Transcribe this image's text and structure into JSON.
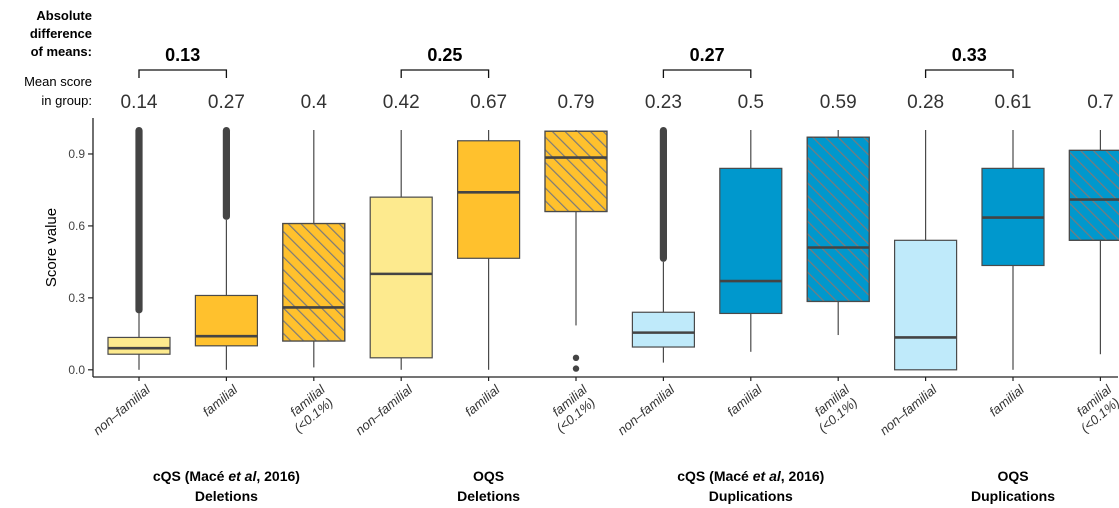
{
  "header": {
    "diff_label_lines": [
      "Absolute",
      "difference",
      "of means:"
    ],
    "mean_label_lines": [
      "Mean score",
      "in group:"
    ]
  },
  "chart_data": {
    "type": "boxplot",
    "ylabel": "Score value",
    "ylim": [
      -0.03,
      1.05
    ],
    "yticks": [
      "0.0",
      "0.3",
      "0.6",
      "0.9"
    ],
    "ytick_values": [
      0.0,
      0.3,
      0.6,
      0.9
    ],
    "colors": {
      "cqs_del_nonfam": "#FDEA8E",
      "del_fam": "#FFC12D",
      "oqs_del_nonfam": "#FDEA8E",
      "cqs_dup_nonfam": "#BFEAFA",
      "dup_fam": "#0098CD",
      "oqs_dup_nonfam": "#BFEAFA",
      "stroke": "#4a4a4a",
      "hatch": "#7a7a7a"
    },
    "groups": [
      {
        "title_prefix": "cQS (Macé ",
        "title_italic": "et al",
        "title_suffix": ", 2016)",
        "subtitle": "Deletions",
        "abs_diff": "0.13",
        "boxes": [
          {
            "label": "non–familial",
            "label2": "",
            "mean": "0.14",
            "color_key": "cqs_del_nonfam",
            "hatched": false,
            "q1": 0.065,
            "median": 0.09,
            "q3": 0.135,
            "whisker_low": 0.0,
            "whisker_high": 0.235,
            "outlier_range": [
              0.235,
              1.0
            ],
            "outliers": []
          },
          {
            "label": "familial",
            "label2": "",
            "mean": "0.27",
            "color_key": "del_fam",
            "hatched": false,
            "q1": 0.1,
            "median": 0.14,
            "q3": 0.31,
            "whisker_low": 0.0,
            "whisker_high": 0.625,
            "outlier_range": [
              0.625,
              1.0
            ],
            "outliers": []
          },
          {
            "label": "familial",
            "label2": "(<0.1%)",
            "mean": "0.4",
            "color_key": "del_fam",
            "hatched": true,
            "q1": 0.12,
            "median": 0.26,
            "q3": 0.61,
            "whisker_low": 0.01,
            "whisker_high": 1.0,
            "outlier_range": null,
            "outliers": []
          }
        ]
      },
      {
        "title_prefix": "OQS",
        "title_italic": "",
        "title_suffix": "",
        "subtitle": "Deletions",
        "abs_diff": "0.25",
        "boxes": [
          {
            "label": "non–familial",
            "label2": "",
            "mean": "0.42",
            "color_key": "oqs_del_nonfam",
            "hatched": false,
            "q1": 0.05,
            "median": 0.4,
            "q3": 0.72,
            "whisker_low": 0.0,
            "whisker_high": 1.0,
            "outlier_range": null,
            "outliers": []
          },
          {
            "label": "familial",
            "label2": "",
            "mean": "0.67",
            "color_key": "del_fam",
            "hatched": false,
            "q1": 0.465,
            "median": 0.74,
            "q3": 0.955,
            "whisker_low": 0.0,
            "whisker_high": 1.0,
            "outlier_range": null,
            "outliers": []
          },
          {
            "label": "familial",
            "label2": "(<0.1%)",
            "mean": "0.79",
            "color_key": "del_fam",
            "hatched": true,
            "q1": 0.66,
            "median": 0.885,
            "q3": 0.995,
            "whisker_low": 0.185,
            "whisker_high": 1.0,
            "outlier_range": null,
            "outliers": [
              0.05,
              0.005
            ]
          }
        ]
      },
      {
        "title_prefix": "cQS (Macé ",
        "title_italic": "et al",
        "title_suffix": ", 2016)",
        "subtitle": "Duplications",
        "abs_diff": "0.27",
        "boxes": [
          {
            "label": "non–familial",
            "label2": "",
            "mean": "0.23",
            "color_key": "cqs_dup_nonfam",
            "hatched": false,
            "q1": 0.095,
            "median": 0.155,
            "q3": 0.24,
            "whisker_low": 0.03,
            "whisker_high": 0.45,
            "outlier_range": [
              0.45,
              1.0
            ],
            "outliers": []
          },
          {
            "label": "familial",
            "label2": "",
            "mean": "0.5",
            "color_key": "dup_fam",
            "hatched": false,
            "q1": 0.235,
            "median": 0.37,
            "q3": 0.84,
            "whisker_low": 0.075,
            "whisker_high": 1.0,
            "outlier_range": null,
            "outliers": []
          },
          {
            "label": "familial",
            "label2": "(<0.1%)",
            "mean": "0.59",
            "color_key": "dup_fam",
            "hatched": true,
            "q1": 0.285,
            "median": 0.51,
            "q3": 0.97,
            "whisker_low": 0.145,
            "whisker_high": 1.0,
            "outlier_range": null,
            "outliers": []
          }
        ]
      },
      {
        "title_prefix": "OQS",
        "title_italic": "",
        "title_suffix": "",
        "subtitle": "Duplications",
        "abs_diff": "0.33",
        "boxes": [
          {
            "label": "non–familial",
            "label2": "",
            "mean": "0.28",
            "color_key": "oqs_dup_nonfam",
            "hatched": false,
            "q1": 0.0,
            "median": 0.135,
            "q3": 0.54,
            "whisker_low": 0.0,
            "whisker_high": 1.0,
            "outlier_range": null,
            "outliers": []
          },
          {
            "label": "familial",
            "label2": "",
            "mean": "0.61",
            "color_key": "dup_fam",
            "hatched": false,
            "q1": 0.435,
            "median": 0.635,
            "q3": 0.84,
            "whisker_low": 0.0,
            "whisker_high": 1.0,
            "outlier_range": null,
            "outliers": []
          },
          {
            "label": "familial",
            "label2": "(<0.1%)",
            "mean": "0.7",
            "color_key": "dup_fam",
            "hatched": true,
            "q1": 0.54,
            "median": 0.71,
            "q3": 0.915,
            "whisker_low": 0.065,
            "whisker_high": 1.0,
            "outlier_range": null,
            "outliers": []
          }
        ]
      }
    ]
  }
}
